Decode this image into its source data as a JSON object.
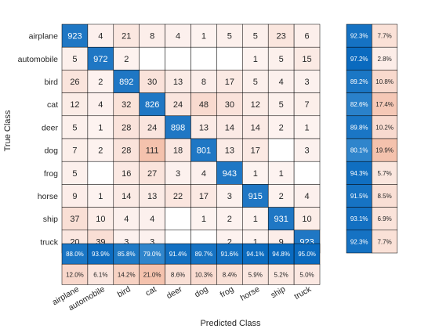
{
  "chart_data": {
    "type": "heatmap",
    "title": "",
    "xlabel": "Predicted Class",
    "ylabel": "True Class",
    "classes": [
      "airplane",
      "automobile",
      "bird",
      "cat",
      "deer",
      "dog",
      "frog",
      "horse",
      "ship",
      "truck"
    ],
    "matrix": [
      [
        923,
        4,
        21,
        8,
        4,
        1,
        5,
        5,
        23,
        6
      ],
      [
        5,
        972,
        2,
        null,
        null,
        null,
        null,
        1,
        5,
        15
      ],
      [
        26,
        2,
        892,
        30,
        13,
        8,
        17,
        5,
        4,
        3
      ],
      [
        12,
        4,
        32,
        826,
        24,
        48,
        30,
        12,
        5,
        7
      ],
      [
        5,
        1,
        28,
        24,
        898,
        13,
        14,
        14,
        2,
        1
      ],
      [
        7,
        2,
        28,
        111,
        18,
        801,
        13,
        17,
        null,
        3
      ],
      [
        5,
        null,
        16,
        27,
        3,
        4,
        943,
        1,
        1,
        null
      ],
      [
        9,
        1,
        14,
        13,
        22,
        17,
        3,
        915,
        2,
        4
      ],
      [
        37,
        10,
        4,
        4,
        null,
        1,
        2,
        1,
        931,
        10
      ],
      [
        20,
        39,
        3,
        3,
        null,
        null,
        2,
        1,
        9,
        923
      ]
    ],
    "row_summary": {
      "correct": [
        "92.3%",
        "97.2%",
        "89.2%",
        "82.6%",
        "89.8%",
        "80.1%",
        "94.3%",
        "91.5%",
        "93.1%",
        "92.3%"
      ],
      "incorrect": [
        "7.7%",
        "2.8%",
        "10.8%",
        "17.4%",
        "10.2%",
        "19.9%",
        "5.7%",
        "8.5%",
        "6.9%",
        "7.7%"
      ]
    },
    "column_summary": {
      "correct": [
        "88.0%",
        "93.9%",
        "85.8%",
        "79.0%",
        "91.4%",
        "89.7%",
        "91.6%",
        "94.1%",
        "94.8%",
        "95.0%"
      ],
      "incorrect": [
        "12.0%",
        "6.1%",
        "14.2%",
        "21.0%",
        "8.6%",
        "10.3%",
        "8.4%",
        "5.9%",
        "5.2%",
        "5.0%"
      ]
    },
    "colors": {
      "diagonal": "#1f77c4",
      "offdiag_low": "#fdf4f2",
      "offdiag_high": "#f4c2ad",
      "summary_correct_low": "#2f85cc",
      "summary_correct_high": "#0a6abf",
      "grid": "#000000"
    }
  }
}
